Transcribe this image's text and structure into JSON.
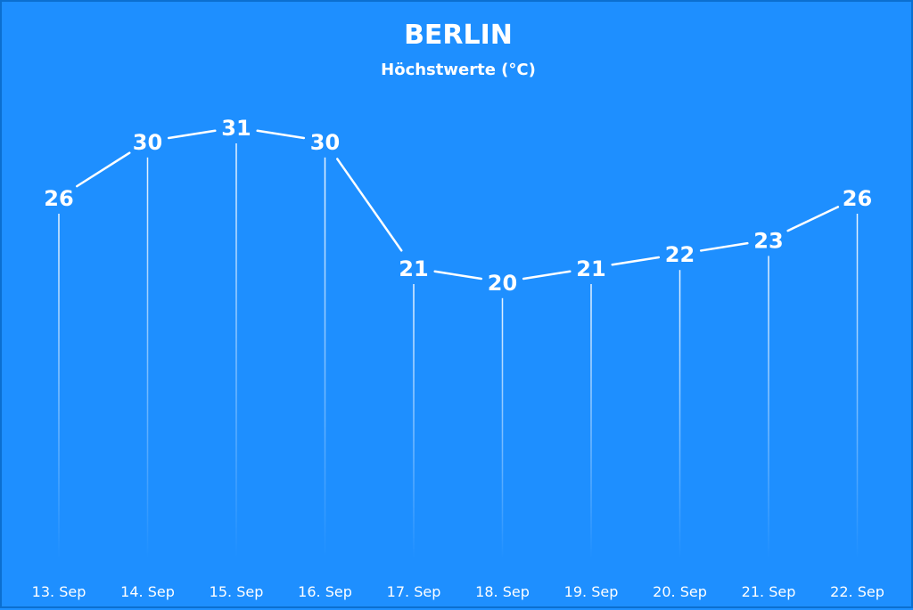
{
  "chart_data": {
    "type": "line",
    "title": "BERLIN",
    "subtitle": "Höchstwerte (°C)",
    "categories": [
      "13. Sep",
      "14. Sep",
      "15. Sep",
      "16. Sep",
      "17. Sep",
      "18. Sep",
      "19. Sep",
      "20. Sep",
      "21. Sep",
      "22. Sep"
    ],
    "values": [
      26,
      30,
      31,
      30,
      21,
      20,
      21,
      22,
      23,
      26
    ],
    "grid": false,
    "data_labels": true,
    "colors": {
      "background": "#1e8fff",
      "line": "#ffffff",
      "text": "#ffffff"
    }
  }
}
